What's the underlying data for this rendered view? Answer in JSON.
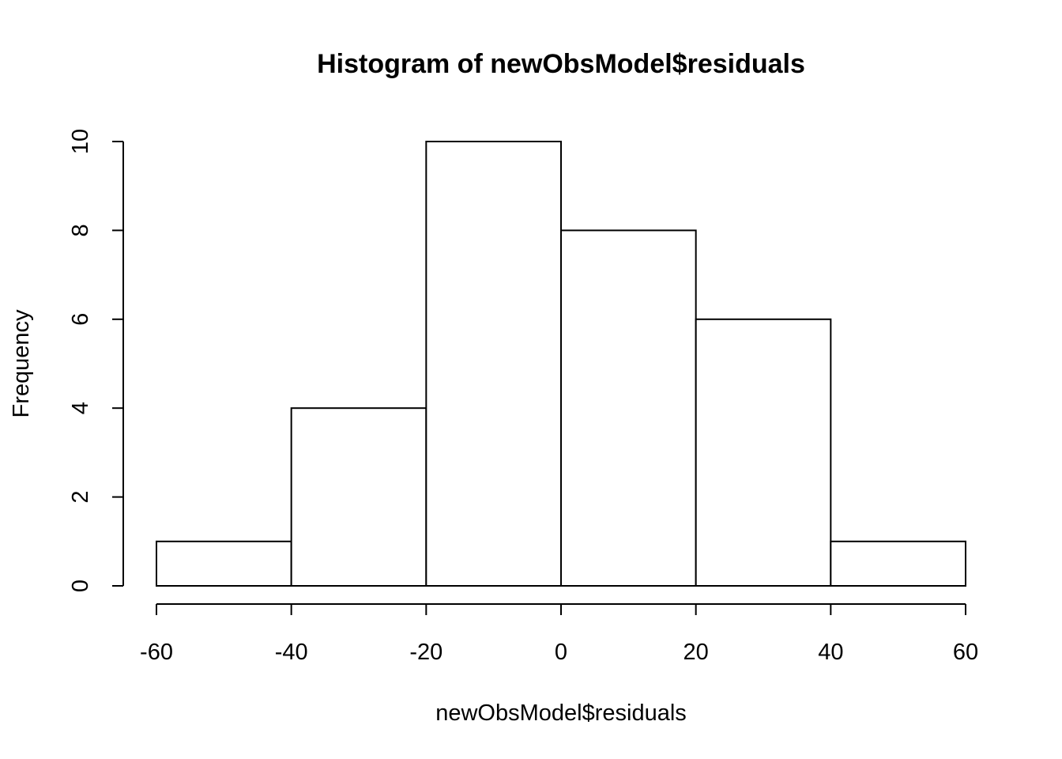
{
  "chart_data": {
    "type": "bar",
    "title": "Histogram of newObsModel$residuals",
    "xlabel": "newObsModel$residuals",
    "ylabel": "Frequency",
    "bins": [
      {
        "from": -60,
        "to": -40,
        "count": 1
      },
      {
        "from": -40,
        "to": -20,
        "count": 4
      },
      {
        "from": -20,
        "to": 0,
        "count": 10
      },
      {
        "from": 0,
        "to": 20,
        "count": 8
      },
      {
        "from": 20,
        "to": 40,
        "count": 6
      },
      {
        "from": 40,
        "to": 60,
        "count": 1
      }
    ],
    "xlim": [
      -60,
      60
    ],
    "ylim": [
      0,
      10
    ],
    "xticks": [
      -60,
      -40,
      -20,
      0,
      20,
      40,
      60
    ],
    "yticks": [
      0,
      2,
      4,
      6,
      8,
      10
    ],
    "grid": false,
    "bar_fill": "#ffffff",
    "bar_stroke": "#000000"
  }
}
